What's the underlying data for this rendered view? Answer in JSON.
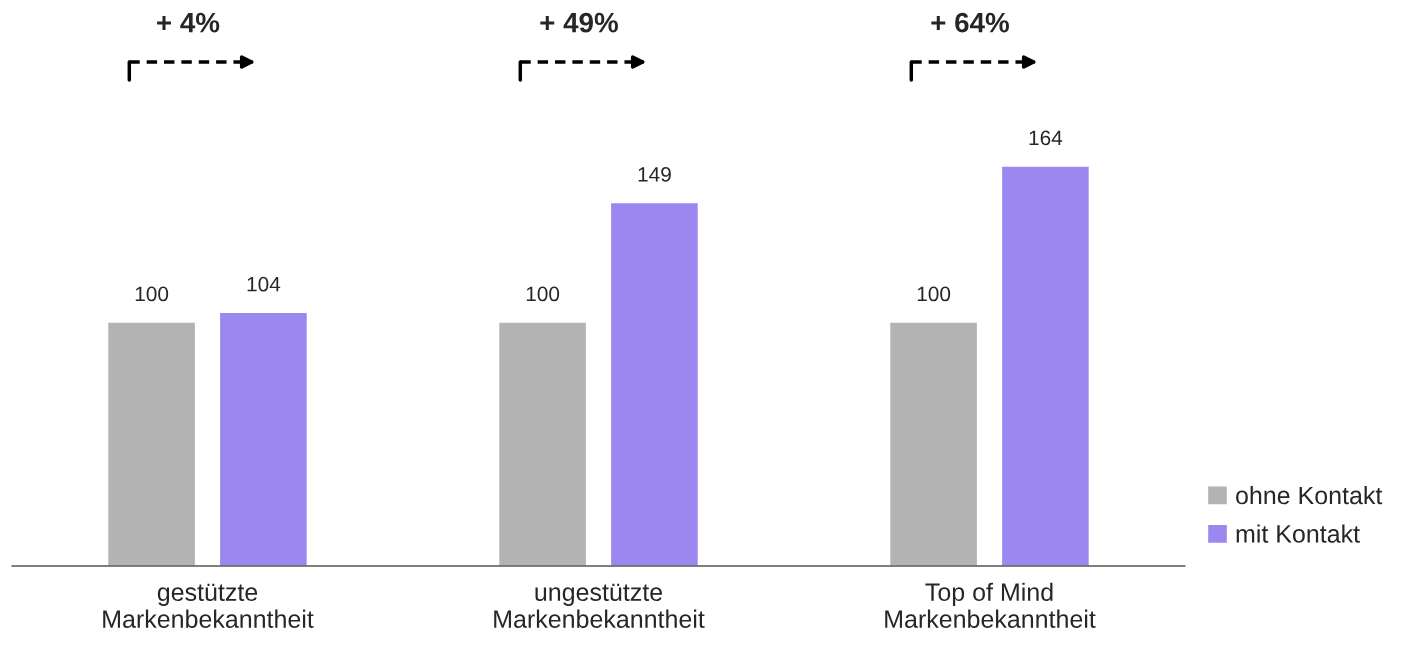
{
  "chart_data": {
    "type": "bar",
    "categories": [
      "gestützte\nMarkenbekanntheit",
      "ungestützte\nMarkenbekanntheit",
      "Top of Mind\nMarkenbekanntheit"
    ],
    "series": [
      {
        "name": "ohne Kontakt",
        "color": "#b3b3b3",
        "values": [
          100,
          100,
          100
        ]
      },
      {
        "name": "mit Kontakt",
        "color": "#9b87ef",
        "values": [
          104,
          149,
          164
        ]
      }
    ],
    "data_labels": true,
    "annotations": [
      "+ 4%",
      "+ 49%",
      "+ 64%"
    ],
    "legend": "bottom right",
    "grid": false
  }
}
